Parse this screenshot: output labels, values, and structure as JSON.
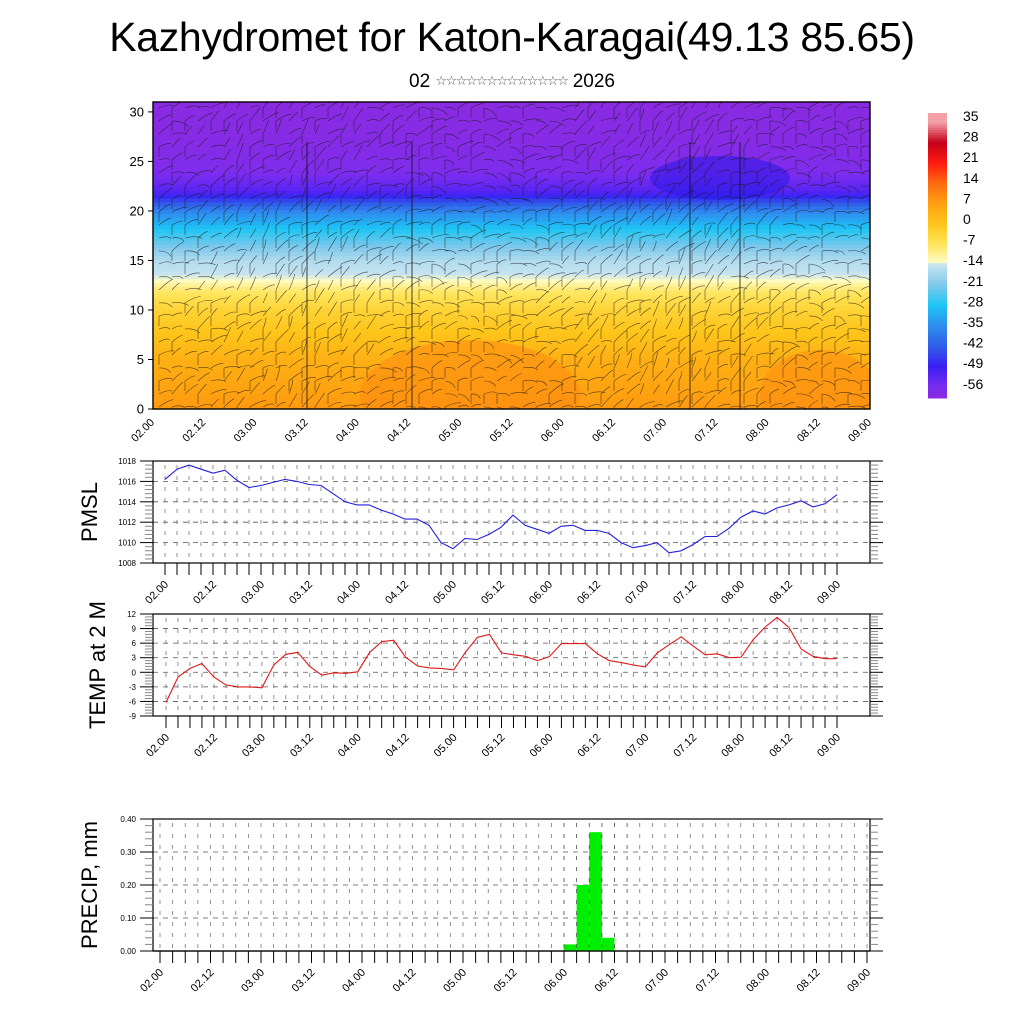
{
  "title": "Kazhydromet for Katon-Karagai(49.13 85.65)",
  "subtitle": {
    "day": "02",
    "month_glyphs": "☆☆☆☆☆☆☆☆☆☆☆☆☆",
    "year": "2026"
  },
  "chart_data": [
    {
      "type": "heatmap",
      "name": "vertical cross-section temperature with wind streamlines",
      "title": "",
      "xlabel": "",
      "ylabel": "",
      "x_tick_labels": [
        "02.00",
        "02.12",
        "03.00",
        "03.12",
        "04.00",
        "04.12",
        "05.00",
        "05.12",
        "06.00",
        "06.12",
        "07.00",
        "07.12",
        "08.00",
        "08.12",
        "09.00"
      ],
      "y_tick_labels": [
        "0",
        "5",
        "10",
        "15",
        "20",
        "25",
        "30"
      ],
      "ylim": [
        0,
        31
      ],
      "colorbar": {
        "labels": [
          "35",
          "28",
          "21",
          "14",
          "7",
          "0",
          "-7",
          "-14",
          "-21",
          "-28",
          "-35",
          "-42",
          "-49",
          "-56"
        ],
        "range": [
          -60,
          38
        ],
        "colors": {
          "-60": "#8a2be2",
          "-56": "#7a2cf0",
          "-49": "#3a1ff5",
          "-42": "#2f5ee8",
          "-35": "#2e8ef0",
          "-28": "#1cc6f5",
          "-21": "#7fc8ea",
          "-14": "#c6e4f0",
          "-13": "#fffac0",
          "-7": "#ffe45a",
          "0": "#ffc51a",
          "7": "#ffa010",
          "14": "#ff6a10",
          "21": "#ff1a10",
          "28": "#c4001a",
          "35": "#f4a0a8"
        }
      },
      "temperature_profile_by_height_km": {
        "heights": [
          0,
          5,
          10,
          12,
          13,
          15,
          18,
          20,
          22,
          24,
          27,
          31
        ],
        "temps": [
          8,
          4,
          -3,
          -8,
          -13,
          -16,
          -27,
          -36,
          -52,
          -57,
          -59,
          -60
        ]
      }
    },
    {
      "type": "line",
      "name": "PMSL",
      "ylabel": "PMSL",
      "ylim": [
        1008,
        1018
      ],
      "y_tick_labels": [
        "1018",
        "1016",
        "1014",
        "1012",
        "1010",
        "1008"
      ],
      "x_tick_labels": [
        "02.00",
        "02.12",
        "03.00",
        "03.12",
        "04.00",
        "04.12",
        "05.00",
        "05.12",
        "06.00",
        "06.12",
        "07.00",
        "07.12",
        "08.00",
        "08.12",
        "09.00"
      ],
      "x_step_hours": 3,
      "color": "#2020e0",
      "values": [
        1016.2,
        1017.2,
        1017.6,
        1017.2,
        1016.8,
        1017.1,
        1016.1,
        1015.4,
        1015.6,
        1015.9,
        1016.2,
        1016.0,
        1015.7,
        1015.6,
        1014.8,
        1014.0,
        1013.7,
        1013.7,
        1013.2,
        1012.8,
        1012.3,
        1012.3,
        1011.7,
        1010.0,
        1009.4,
        1010.4,
        1010.3,
        1010.8,
        1011.5,
        1012.7,
        1011.7,
        1011.3,
        1010.9,
        1011.6,
        1011.7,
        1011.2,
        1011.2,
        1010.9,
        1010.0,
        1009.5,
        1009.7,
        1010.0,
        1009.0,
        1009.2,
        1009.8,
        1010.6,
        1010.6,
        1011.4,
        1012.5,
        1013.1,
        1012.8,
        1013.4,
        1013.7,
        1014.1,
        1013.5,
        1013.8,
        1014.7
      ]
    },
    {
      "type": "line",
      "name": "TEMP at 2 M",
      "ylabel": "TEMP at 2 M",
      "ylim": [
        -9,
        12
      ],
      "y_tick_labels": [
        "12",
        "9",
        "6",
        "3",
        "0",
        "-3",
        "-6",
        "-9"
      ],
      "x_tick_labels": [
        "02.00",
        "02.12",
        "03.00",
        "03.12",
        "04.00",
        "04.12",
        "05.00",
        "05.12",
        "06.00",
        "06.12",
        "07.00",
        "07.12",
        "08.00",
        "08.12",
        "09.00"
      ],
      "x_step_hours": 3,
      "color": "#e01818",
      "values": [
        -6.2,
        -1.0,
        0.8,
        1.8,
        -1.0,
        -2.6,
        -3.0,
        -3.0,
        -3.2,
        1.5,
        3.7,
        4.1,
        1.2,
        -0.6,
        -0.1,
        -0.2,
        0.1,
        4.1,
        6.3,
        6.6,
        3.1,
        1.3,
        0.9,
        0.8,
        0.5,
        4.2,
        7.2,
        7.8,
        4.0,
        3.6,
        3.3,
        2.4,
        3.2,
        5.9,
        5.9,
        5.9,
        3.8,
        2.4,
        2.0,
        1.5,
        1.1,
        4.0,
        5.7,
        7.3,
        5.4,
        3.6,
        3.8,
        3.0,
        3.1,
        6.7,
        9.3,
        11.3,
        9.2,
        4.8,
        3.3,
        2.8,
        2.8
      ]
    },
    {
      "type": "bar",
      "name": "PRECIP, mm",
      "ylabel": "PRECIP, mm",
      "ylim": [
        0,
        0.4
      ],
      "y_tick_labels": [
        "0.40",
        "0.30",
        "0.20",
        "0.10",
        "0.00"
      ],
      "x_tick_labels": [
        "02.00",
        "02.12",
        "03.00",
        "03.12",
        "04.00",
        "04.12",
        "05.00",
        "05.12",
        "06.00",
        "06.12",
        "07.00",
        "07.12",
        "08.00",
        "08.12",
        "09.00"
      ],
      "x_step_hours": 3,
      "color": "#00ee00",
      "bars": [
        {
          "end_step": 33,
          "value": 0.02
        },
        {
          "end_step": 34,
          "value": 0.2
        },
        {
          "end_step": 35,
          "value": 0.36
        },
        {
          "end_step": 36,
          "value": 0.04
        }
      ]
    }
  ]
}
